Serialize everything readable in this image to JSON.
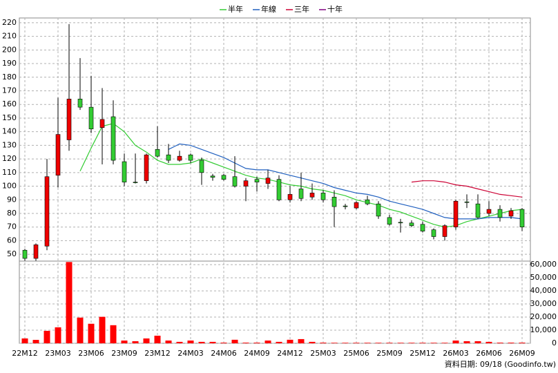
{
  "chart_data": [
    {
      "type": "candlestick",
      "open": [
        53,
        47,
        56,
        108,
        134,
        164,
        158,
        143,
        151,
        118,
        103,
        104,
        127,
        123,
        119,
        123,
        119,
        107.5,
        108,
        107,
        100,
        105,
        102,
        105,
        90,
        98,
        92,
        95,
        92,
        85.5,
        84,
        90,
        87,
        77,
        73.5,
        73,
        72,
        68,
        63,
        70,
        88.5,
        87,
        80,
        83,
        78,
        83
      ],
      "high": [
        54,
        58,
        120,
        165,
        219,
        194,
        181,
        172,
        163,
        124,
        124,
        124,
        144,
        131,
        126,
        124,
        121,
        109,
        109,
        122,
        106,
        107,
        112,
        108,
        100,
        110,
        102,
        97,
        97,
        87,
        89,
        93,
        89,
        79,
        76,
        75,
        74,
        69,
        72,
        90,
        94,
        94,
        89,
        86,
        84,
        84
      ],
      "low": [
        45,
        45,
        53,
        99,
        126,
        156,
        139,
        116,
        116,
        100,
        102,
        102,
        121,
        117,
        118,
        117,
        101,
        104,
        104,
        99,
        89,
        96,
        98,
        89,
        88,
        89,
        90,
        88,
        70,
        83,
        83,
        86,
        76,
        71,
        66,
        70,
        66,
        61,
        60,
        68,
        84,
        76,
        78,
        74,
        76,
        67
      ],
      "close": [
        47,
        57,
        107,
        138,
        164,
        158,
        142,
        149,
        119,
        103,
        102.5,
        123,
        122,
        119,
        122,
        119,
        110,
        106.5,
        105,
        100,
        104,
        103,
        106,
        90,
        94,
        91,
        95,
        90,
        85,
        85,
        88,
        87,
        78,
        72,
        73,
        71,
        67,
        63,
        71,
        89,
        88,
        77,
        83,
        77,
        82,
        70
      ],
      "up_color": "#ee0000",
      "down_color": "#33cc33",
      "ylim": [
        45,
        223.5
      ],
      "yticks": [
        50,
        60,
        70,
        80,
        90,
        100,
        110,
        120,
        130,
        140,
        150,
        160,
        170,
        180,
        190,
        200,
        210,
        220
      ],
      "grid": true,
      "legend": "top",
      "series": [
        {
          "name": "半年",
          "color": "#33cc33",
          "values": [
            null,
            null,
            null,
            null,
            null,
            111,
            128,
            144,
            146,
            140,
            130,
            125,
            119,
            116,
            116,
            117,
            120,
            117,
            114,
            111,
            108,
            106,
            105,
            103,
            101,
            100,
            98,
            97,
            95,
            93,
            90,
            88,
            86,
            83,
            81,
            78,
            75,
            72,
            70,
            71,
            74,
            76,
            78,
            80,
            82,
            83
          ]
        },
        {
          "name": "年線",
          "color": "#1f5fbf",
          "values": [
            null,
            null,
            null,
            null,
            null,
            null,
            null,
            null,
            null,
            null,
            null,
            null,
            null,
            127,
            131,
            130,
            127,
            124,
            121,
            117,
            113,
            112,
            112,
            110,
            108,
            106,
            104,
            102,
            99,
            97,
            95,
            94,
            92,
            89,
            87,
            85,
            83,
            80,
            77,
            76,
            76,
            76,
            77,
            77,
            77,
            76
          ]
        },
        {
          "name": "三年",
          "color": "#cc0033",
          "values": [
            null,
            null,
            null,
            null,
            null,
            null,
            null,
            null,
            null,
            null,
            null,
            null,
            null,
            null,
            null,
            null,
            null,
            null,
            null,
            null,
            null,
            null,
            null,
            null,
            null,
            null,
            null,
            null,
            null,
            null,
            null,
            null,
            null,
            null,
            null,
            103,
            104,
            104,
            103,
            101,
            100,
            98,
            96,
            94,
            93,
            92
          ]
        },
        {
          "name": "十年",
          "color": "#800080",
          "values": [
            null,
            null,
            null,
            null,
            null,
            null,
            null,
            null,
            null,
            null,
            null,
            null,
            null,
            null,
            null,
            null,
            null,
            null,
            null,
            null,
            null,
            null,
            null,
            null,
            null,
            null,
            null,
            null,
            null,
            null,
            null,
            null,
            null,
            null,
            null,
            null,
            null,
            null,
            null,
            null,
            null,
            null,
            null,
            null,
            null,
            null
          ]
        }
      ]
    },
    {
      "type": "bar",
      "categories": [
        "22M12",
        null,
        null,
        "23M03",
        null,
        null,
        "23M06",
        null,
        null,
        "23M09",
        null,
        null,
        "23M12",
        null,
        null,
        "24M03",
        null,
        null,
        "24M06",
        null,
        null,
        "24M09",
        null,
        null,
        "24M12",
        null,
        null,
        "25M03",
        null,
        null,
        "25M06",
        null,
        null,
        "25M09",
        null,
        null,
        "25M12",
        null,
        null,
        "26M03",
        null,
        null,
        "26M06",
        null,
        null,
        "26M09"
      ],
      "values": [
        3700,
        2600,
        9500,
        12200,
        62000,
        19600,
        14900,
        20200,
        13800,
        2100,
        1600,
        3700,
        5800,
        2100,
        1100,
        2100,
        1100,
        1100,
        500,
        2700,
        500,
        500,
        2100,
        1100,
        2700,
        3200,
        1100,
        500,
        400,
        400,
        400,
        400,
        400,
        400,
        400,
        400,
        400,
        400,
        400,
        2100,
        1600,
        1600,
        1100,
        500,
        500,
        500
      ],
      "color": "#ff0000",
      "ylim": [
        0,
        62700
      ],
      "yticks": [
        0,
        {
          "value": 10000,
          "label": "10,000"
        },
        {
          "value": 20000,
          "label": "20,000"
        },
        {
          "value": 30000,
          "label": "30,000"
        },
        {
          "value": 40000,
          "label": "40,000"
        },
        {
          "value": 50000,
          "label": "50,000"
        },
        {
          "value": 60000,
          "label": "60,000"
        }
      ],
      "grid": true
    }
  ],
  "footnote": "資料日期: 09/18  (Goodinfo.tw)"
}
